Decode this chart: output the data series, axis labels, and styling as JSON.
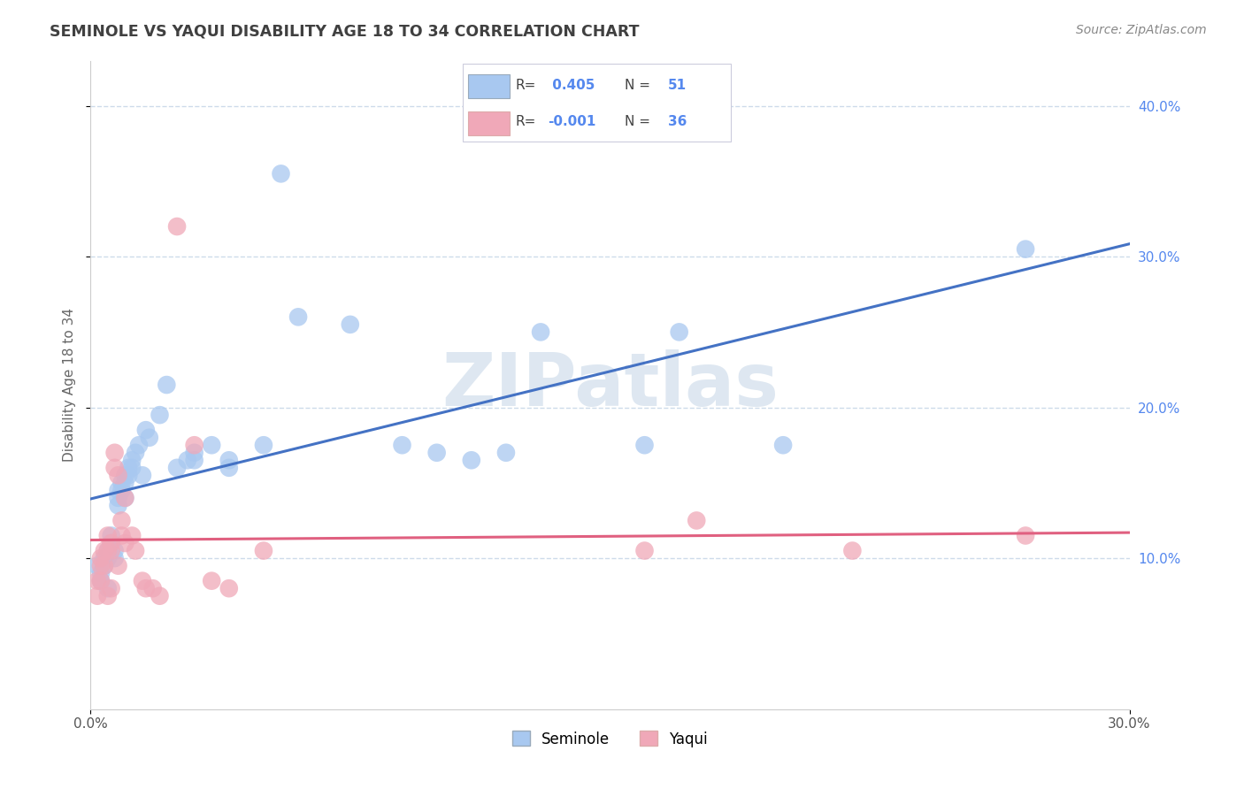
{
  "title": "SEMINOLE VS YAQUI DISABILITY AGE 18 TO 34 CORRELATION CHART",
  "source": "Source: ZipAtlas.com",
  "ylabel": "Disability Age 18 to 34",
  "xlim": [
    0.0,
    0.3
  ],
  "ylim": [
    0.0,
    0.43
  ],
  "xtick_positions": [
    0.0,
    0.3
  ],
  "xtick_labels": [
    "0.0%",
    "30.0%"
  ],
  "ytick_positions": [
    0.1,
    0.2,
    0.3,
    0.4
  ],
  "ytick_labels_right": [
    "10.0%",
    "20.0%",
    "30.0%",
    "40.0%"
  ],
  "seminole_color": "#a8c8f0",
  "yaqui_color": "#f0a8b8",
  "trend_blue": "#4472c4",
  "trend_pink": "#e06080",
  "seminole_R": 0.405,
  "seminole_N": 51,
  "yaqui_R": -0.001,
  "yaqui_N": 36,
  "title_color": "#404040",
  "source_color": "#888888",
  "right_tick_color": "#5588ee",
  "grid_color": "#c8d8e8",
  "watermark_color": "#c8d8e8",
  "seminole_x": [
    0.002,
    0.003,
    0.003,
    0.004,
    0.004,
    0.005,
    0.005,
    0.005,
    0.006,
    0.006,
    0.007,
    0.007,
    0.008,
    0.008,
    0.008,
    0.009,
    0.009,
    0.01,
    0.01,
    0.01,
    0.011,
    0.011,
    0.012,
    0.012,
    0.013,
    0.014,
    0.015,
    0.016,
    0.017,
    0.02,
    0.022,
    0.025,
    0.028,
    0.03,
    0.03,
    0.035,
    0.04,
    0.04,
    0.05,
    0.055,
    0.06,
    0.075,
    0.09,
    0.1,
    0.11,
    0.12,
    0.13,
    0.16,
    0.17,
    0.2,
    0.27
  ],
  "seminole_y": [
    0.095,
    0.09,
    0.085,
    0.1,
    0.095,
    0.105,
    0.1,
    0.08,
    0.115,
    0.11,
    0.105,
    0.1,
    0.145,
    0.14,
    0.135,
    0.15,
    0.145,
    0.155,
    0.15,
    0.14,
    0.16,
    0.155,
    0.165,
    0.16,
    0.17,
    0.175,
    0.155,
    0.185,
    0.18,
    0.195,
    0.215,
    0.16,
    0.165,
    0.17,
    0.165,
    0.175,
    0.165,
    0.16,
    0.175,
    0.355,
    0.26,
    0.255,
    0.175,
    0.17,
    0.165,
    0.17,
    0.25,
    0.175,
    0.25,
    0.175,
    0.305
  ],
  "yaqui_x": [
    0.002,
    0.002,
    0.003,
    0.003,
    0.003,
    0.004,
    0.004,
    0.005,
    0.005,
    0.005,
    0.006,
    0.006,
    0.006,
    0.007,
    0.007,
    0.008,
    0.008,
    0.009,
    0.009,
    0.01,
    0.01,
    0.012,
    0.013,
    0.015,
    0.016,
    0.018,
    0.02,
    0.025,
    0.03,
    0.035,
    0.04,
    0.05,
    0.16,
    0.175,
    0.22,
    0.27
  ],
  "yaqui_y": [
    0.085,
    0.075,
    0.1,
    0.095,
    0.085,
    0.105,
    0.095,
    0.115,
    0.105,
    0.075,
    0.11,
    0.105,
    0.08,
    0.17,
    0.16,
    0.155,
    0.095,
    0.125,
    0.115,
    0.14,
    0.11,
    0.115,
    0.105,
    0.085,
    0.08,
    0.08,
    0.075,
    0.32,
    0.175,
    0.085,
    0.08,
    0.105,
    0.105,
    0.125,
    0.105,
    0.115
  ]
}
